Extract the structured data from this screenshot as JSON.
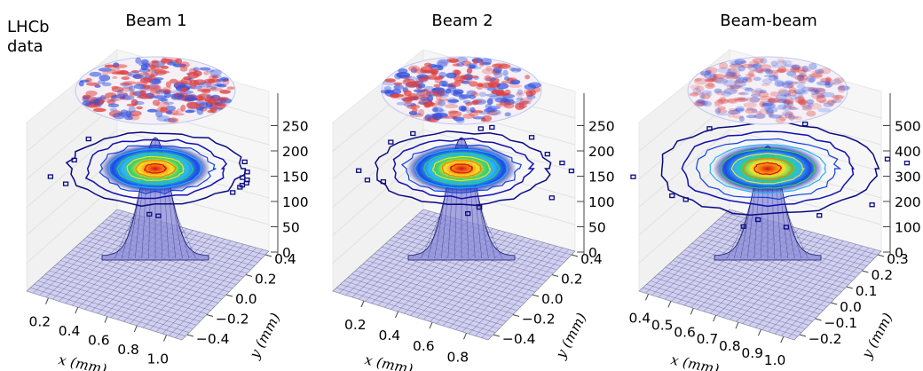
{
  "page": {
    "experiment_label": "LHCb\ndata"
  },
  "colors": {
    "surface_fill": "#c8c8f4",
    "surface_edge": "#555555",
    "wire": "#1a1a6e",
    "residual_pos": "#e04040",
    "residual_neg": "#3050e0"
  },
  "chart_data": [
    {
      "type": "surface3d",
      "title": "Beam 1",
      "xlabel": "x (mm)",
      "ylabel": "y (mm)",
      "x_ticks": [
        "0.2",
        "0.4",
        "0.6",
        "0.8",
        "1.0"
      ],
      "y_ticks": [
        "−0.4",
        "−0.2",
        "0.0",
        "0.2",
        "0.4"
      ],
      "z_ticks": [
        "0",
        "50",
        "100",
        "150",
        "200",
        "250"
      ],
      "zlim": [
        0,
        290
      ],
      "peak": 260,
      "layers": [
        "fitted surface",
        "data contours",
        "residual map"
      ]
    },
    {
      "type": "surface3d",
      "title": "Beam 2",
      "xlabel": "x (mm)",
      "ylabel": "y (mm)",
      "x_ticks": [
        "0.2",
        "0.4",
        "0.6",
        "0.8"
      ],
      "y_ticks": [
        "−0.4",
        "−0.2",
        "0.0",
        "0.2",
        "0.4"
      ],
      "z_ticks": [
        "0",
        "50",
        "100",
        "150",
        "200",
        "250"
      ],
      "zlim": [
        0,
        290
      ],
      "peak": 260,
      "layers": [
        "fitted surface",
        "data contours",
        "residual map"
      ]
    },
    {
      "type": "surface3d",
      "title": "Beam-beam",
      "xlabel": "x (mm)",
      "ylabel": "y (mm)",
      "x_ticks": [
        "0.4",
        "0.5",
        "0.6",
        "0.7",
        "0.8",
        "0.9",
        "1.0"
      ],
      "y_ticks": [
        "−0.2",
        "−0.1",
        "0.0",
        "0.1",
        "0.2",
        "0.3"
      ],
      "z_ticks": [
        "0",
        "100",
        "200",
        "300",
        "400",
        "500"
      ],
      "zlim": [
        0,
        520
      ],
      "peak": 470,
      "layers": [
        "fitted surface",
        "data contours",
        "residual map"
      ]
    }
  ]
}
